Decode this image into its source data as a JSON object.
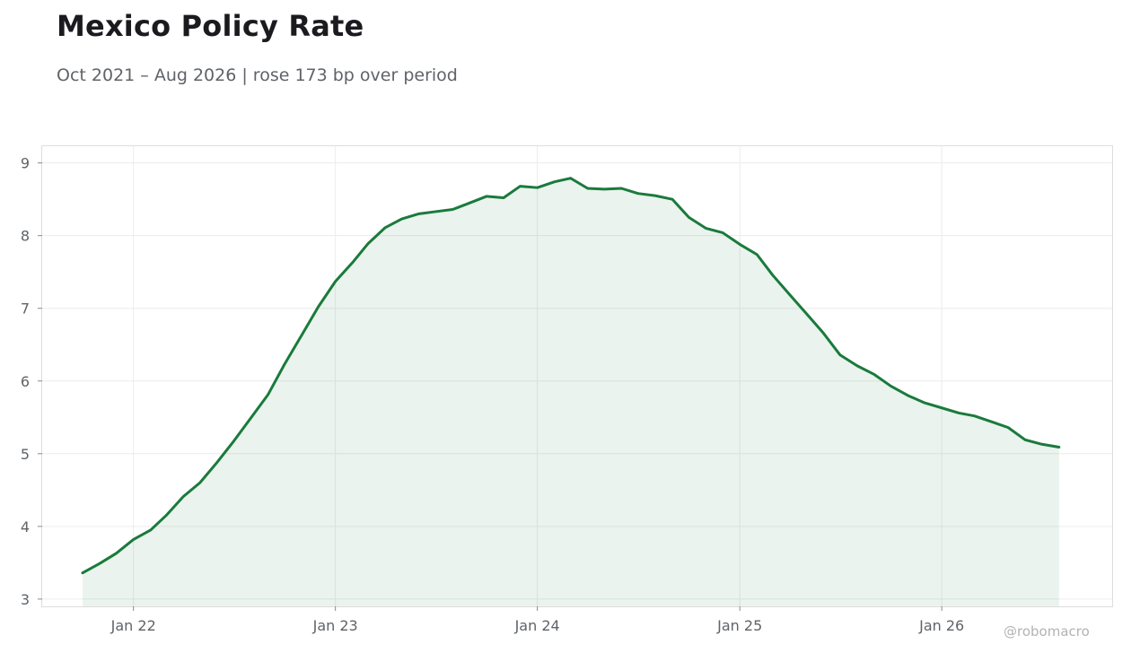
{
  "title": "Mexico Policy Rate",
  "subtitle": "Oct 2021 – Aug 2026 | rose 173 bp over period",
  "watermark": "@robomacro",
  "colors": {
    "line": "#1a7a3c",
    "fill": "#1a7a3c",
    "grid": "#ececec",
    "frame": "#dddddd",
    "tick_text": "#5f6368"
  },
  "chart_data": {
    "type": "area",
    "title": "Mexico Policy Rate",
    "subtitle": "Oct 2021 – Aug 2026 | rose 173 bp over period",
    "xlabel": "",
    "ylabel": "",
    "grid": true,
    "legend": "none",
    "ylim": [
      2.9,
      9.23
    ],
    "xlim": [
      "2021-07-20",
      "2026-11-05"
    ],
    "y_ticks": [
      3,
      4,
      5,
      6,
      7,
      8,
      9
    ],
    "x_ticks": [
      {
        "date": "2022-01-01",
        "label": "Jan 22"
      },
      {
        "date": "2023-01-01",
        "label": "Jan 23"
      },
      {
        "date": "2024-01-01",
        "label": "Jan 24"
      },
      {
        "date": "2025-01-01",
        "label": "Jan 25"
      },
      {
        "date": "2026-01-01",
        "label": "Jan 26"
      }
    ],
    "series": [
      {
        "x": [
          "2021-10-01",
          "2021-11-01",
          "2021-12-01",
          "2022-01-01",
          "2022-02-01",
          "2022-03-01",
          "2022-04-01",
          "2022-05-01",
          "2022-06-01",
          "2022-07-01",
          "2022-08-01",
          "2022-09-01",
          "2022-10-01",
          "2022-11-01",
          "2022-12-01",
          "2023-01-01",
          "2023-02-01",
          "2023-03-01",
          "2023-04-01",
          "2023-05-01",
          "2023-06-01",
          "2023-07-01",
          "2023-08-01",
          "2023-09-01",
          "2023-10-01",
          "2023-11-01",
          "2023-12-01",
          "2024-01-01",
          "2024-02-01",
          "2024-03-01",
          "2024-04-01",
          "2024-05-01",
          "2024-06-01",
          "2024-07-01",
          "2024-08-01",
          "2024-09-01",
          "2024-10-01",
          "2024-11-01",
          "2024-12-01",
          "2025-01-01",
          "2025-02-01",
          "2025-03-01",
          "2025-04-01",
          "2025-05-01",
          "2025-06-01",
          "2025-07-01",
          "2025-08-01",
          "2025-09-01",
          "2025-10-01",
          "2025-11-01",
          "2025-12-01",
          "2026-01-01",
          "2026-02-01",
          "2026-03-01",
          "2026-04-01",
          "2026-05-01",
          "2026-06-01",
          "2026-07-01",
          "2026-08-01"
        ],
        "values": [
          3.36,
          3.49,
          3.63,
          3.82,
          3.95,
          4.15,
          4.41,
          4.6,
          4.88,
          5.17,
          5.49,
          5.81,
          6.23,
          6.63,
          7.02,
          7.37,
          7.63,
          7.89,
          8.11,
          8.23,
          8.3,
          8.33,
          8.36,
          8.45,
          8.54,
          8.52,
          8.68,
          8.66,
          8.74,
          8.79,
          8.65,
          8.64,
          8.65,
          8.58,
          8.55,
          8.5,
          8.25,
          8.1,
          8.04,
          7.88,
          7.74,
          7.46,
          7.19,
          6.93,
          6.66,
          6.36,
          6.21,
          6.09,
          5.93,
          5.8,
          5.7,
          5.63,
          5.56,
          5.52,
          5.44,
          5.36,
          5.19,
          5.13,
          5.09
        ]
      }
    ]
  }
}
